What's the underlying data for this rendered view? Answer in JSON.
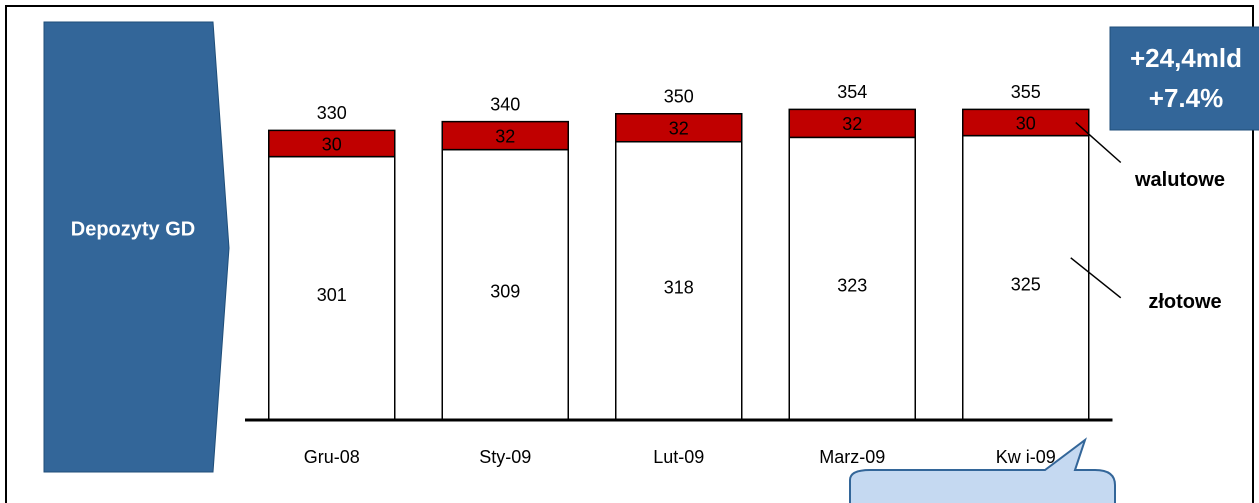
{
  "chart_data": {
    "type": "stacked_bar",
    "label": "Depozyty GD",
    "badge": [
      "+24,4mld",
      "+7.4%"
    ],
    "categories": [
      "Gru-08",
      "Sty-09",
      "Lut-09",
      "Marz-09",
      "Kw i-09"
    ],
    "series": [
      {
        "name": "złotowe",
        "color": "#ffffff",
        "values": [
          301,
          309,
          318,
          323,
          325
        ]
      },
      {
        "name": "walutowe",
        "color": "#c00000",
        "values": [
          30,
          32,
          32,
          32,
          30
        ]
      }
    ],
    "totals": [
      330,
      340,
      350,
      354,
      355
    ],
    "ylim": [
      0,
      400
    ]
  }
}
